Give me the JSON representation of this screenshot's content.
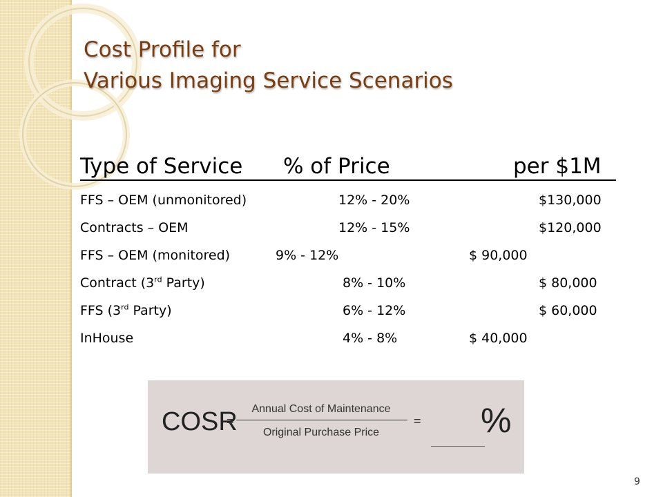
{
  "slide": {
    "title_line1": "Cost Profile for",
    "title_line2": "Various Imaging Service Scenarios",
    "page_number": "9"
  },
  "table": {
    "headers": {
      "type": "Type of Service",
      "pct": "% of Price",
      "per": "per $1M"
    },
    "rows": [
      {
        "type": "FFS – OEM (unmonitored)",
        "pct": "12% - 20%",
        "per": "$130,000"
      },
      {
        "type": "Contracts – OEM",
        "pct": "12% - 15%",
        "per": "$120,000"
      },
      {
        "type": "FFS – OEM (monitored)",
        "pct": "9% - 12%",
        "per": "$ 90,000"
      },
      {
        "type_prefix": "Contract (3",
        "type_sup": "rd",
        "type_suffix": " Party)",
        "pct": "8% - 10%",
        "per": "$ 80,000"
      },
      {
        "type_prefix": "FFS (3",
        "type_sup": "rd",
        "type_suffix": " Party)",
        "pct": "6% - 12%",
        "per": "$ 60,000"
      },
      {
        "type": "InHouse",
        "pct": "4% - 8%",
        "per": "$ 40,000"
      }
    ]
  },
  "formula": {
    "lhs": "COSR",
    "eq": "=",
    "numerator": "Annual Cost of Maintenance",
    "denominator": "Original Purchase Price",
    "percent": "%"
  },
  "colors": {
    "title": "#7a3d0f",
    "left_band": "#f3e4b7",
    "formula_bg": "#ddd6d4"
  }
}
